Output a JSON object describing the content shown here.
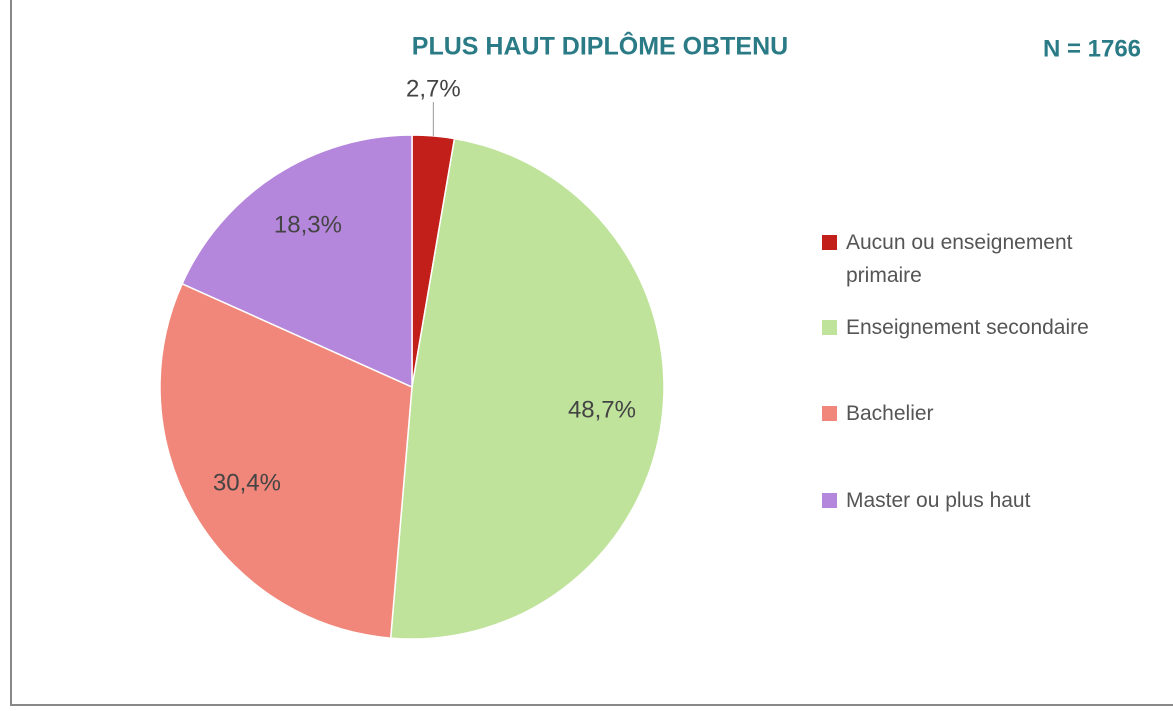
{
  "chart_data": {
    "type": "pie",
    "title": "PLUS HAUT DIPLÔME OBTENU",
    "annotation": "N = 1766",
    "categories": [
      "Aucun ou enseignement primaire",
      "Enseignement secondaire",
      "Bachelier",
      "Master ou plus haut"
    ],
    "values": [
      2.7,
      48.7,
      30.4,
      18.3
    ],
    "value_labels": [
      "2,7%",
      "48,7%",
      "30,4%",
      "18,3%"
    ],
    "colors": [
      "#c21f1a",
      "#bfe39b",
      "#f0877a",
      "#b587dc"
    ]
  }
}
